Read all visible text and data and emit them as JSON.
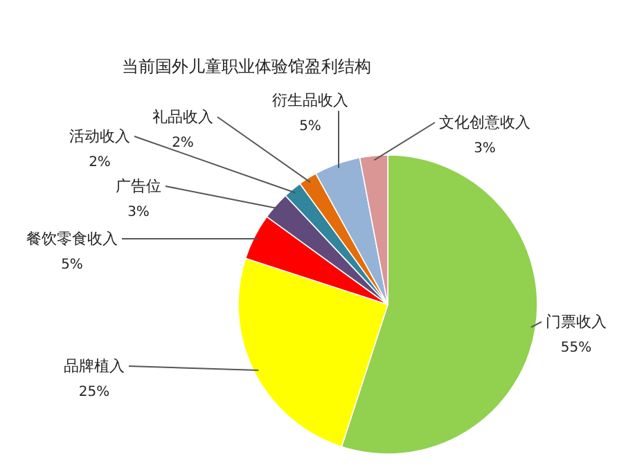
{
  "chart_data": {
    "type": "pie",
    "title": "当前国外儿童职业体验馆盈利结构",
    "categories": [
      "门票收入",
      "品牌植入",
      "餐饮零食收入",
      "广告位",
      "活动收入",
      "礼品收入",
      "衍生品收入",
      "文化创意收入"
    ],
    "values": [
      55,
      25,
      5,
      3,
      2,
      2,
      5,
      3
    ],
    "value_labels": [
      "55%",
      "25%",
      "5%",
      "3%",
      "2%",
      "2%",
      "5%",
      "3%"
    ],
    "colors": [
      "#92d050",
      "#ffff00",
      "#ff0000",
      "#604a7b",
      "#31859c",
      "#e46c0a",
      "#95b3d7",
      "#d99694"
    ]
  }
}
